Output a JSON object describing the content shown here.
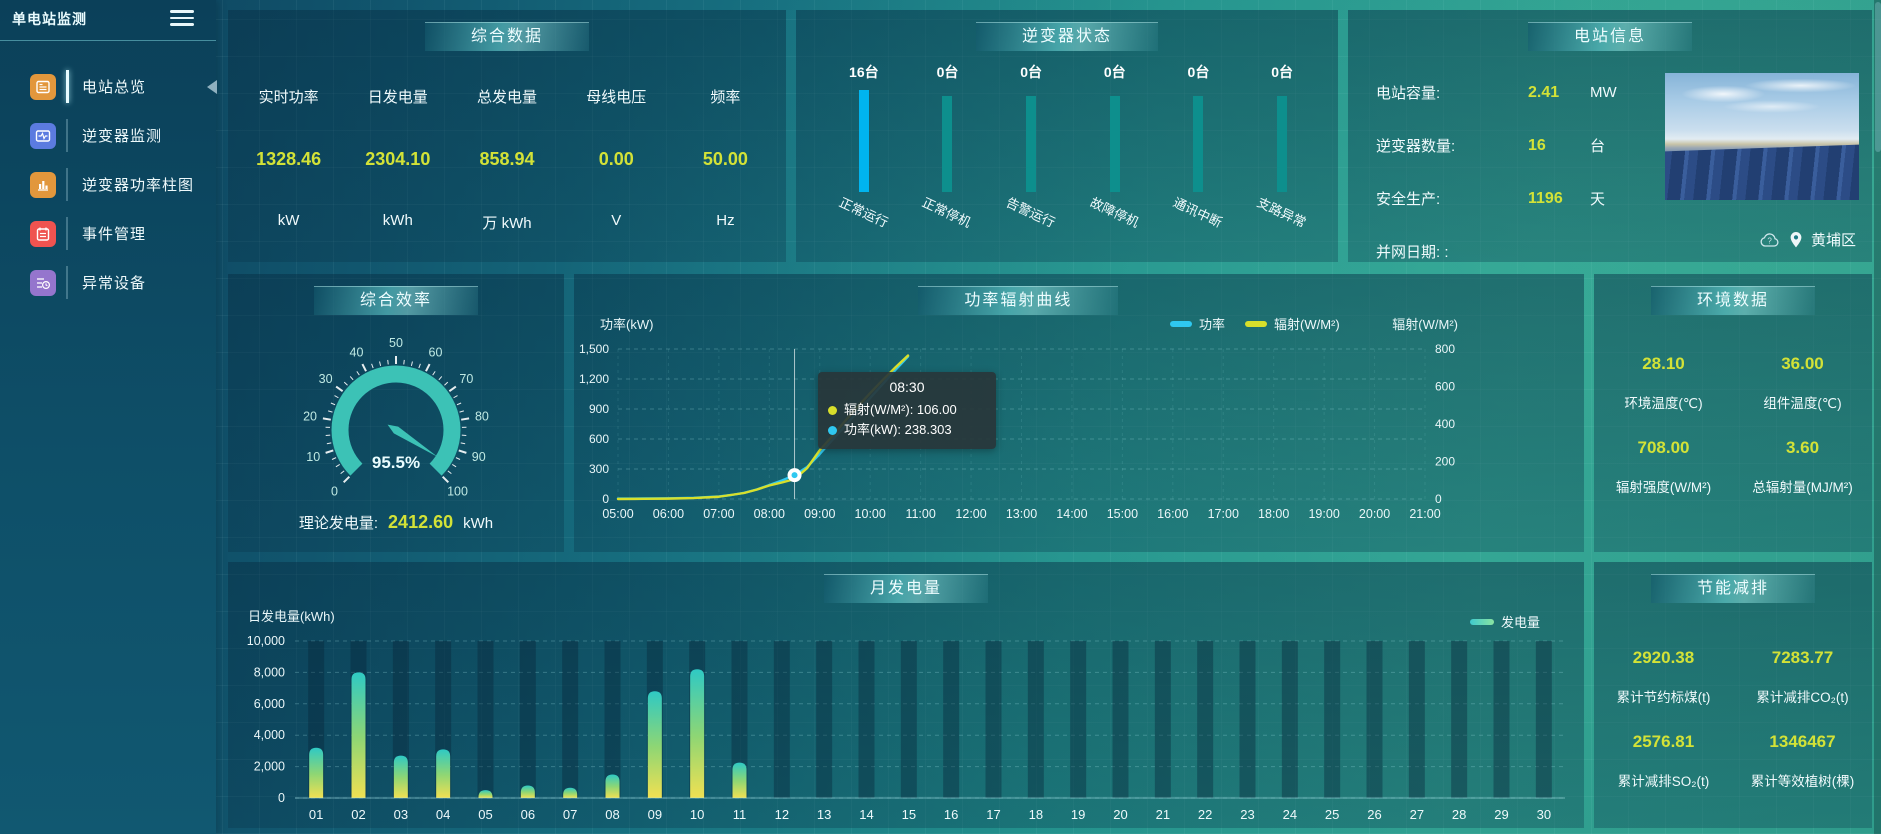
{
  "app": {
    "title": "单电站监测"
  },
  "sidebar": {
    "items": [
      {
        "label": "电站总览",
        "icon": "overview-icon",
        "color": "#e2973c",
        "active": true
      },
      {
        "label": "逆变器监测",
        "icon": "inverter-monitor-icon",
        "color": "#5b7be0",
        "active": false
      },
      {
        "label": "逆变器功率柱图",
        "icon": "inverter-power-icon",
        "color": "#e2973c",
        "active": false
      },
      {
        "label": "事件管理",
        "icon": "event-icon",
        "color": "#ef5350",
        "active": false
      },
      {
        "label": "异常设备",
        "icon": "abnormal-icon",
        "color": "#9575cd",
        "active": false
      }
    ]
  },
  "panels": {
    "summary": {
      "title": "综合数据",
      "metrics": [
        {
          "label": "实时功率",
          "value": "1328.46",
          "unit": "kW"
        },
        {
          "label": "日发电量",
          "value": "2304.10",
          "unit": "kWh"
        },
        {
          "label": "总发电量",
          "value": "858.94",
          "unit": "万 kWh"
        },
        {
          "label": "母线电压",
          "value": "0.00",
          "unit": "V"
        },
        {
          "label": "频率",
          "value": "50.00",
          "unit": "Hz"
        }
      ]
    },
    "inverter_status": {
      "title": "逆变器状态",
      "bars": [
        {
          "count": "16台",
          "value": 16,
          "label": "正常运行",
          "color": "#00b4ef"
        },
        {
          "count": "0台",
          "value": 0,
          "label": "正常停机",
          "color": "#0d8f8d"
        },
        {
          "count": "0台",
          "value": 0,
          "label": "告警运行",
          "color": "#0d8f8d"
        },
        {
          "count": "0台",
          "value": 0,
          "label": "故障停机",
          "color": "#0d8f8d"
        },
        {
          "count": "0台",
          "value": 0,
          "label": "通讯中断",
          "color": "#0d8f8d"
        },
        {
          "count": "0台",
          "value": 0,
          "label": "支路异常",
          "color": "#0d8f8d"
        }
      ]
    },
    "station_info": {
      "title": "电站信息",
      "rows": [
        {
          "label": "电站容量:",
          "value": "2.41",
          "unit": "MW"
        },
        {
          "label": "逆变器数量:",
          "value": "16",
          "unit": "台"
        },
        {
          "label": "安全生产:",
          "value": "1196",
          "unit": "天"
        },
        {
          "label": "并网日期: :",
          "value": "",
          "unit": ""
        }
      ],
      "location": "黄埔区"
    },
    "efficiency": {
      "title": "综合效率",
      "theory_label": "理论发电量:",
      "theory_value": "2412.60",
      "theory_unit": "kWh"
    },
    "power_curve": {
      "title": "功率辐射曲线",
      "axis_left": "功率(kW)",
      "axis_right": "辐射(W/M²)"
    },
    "environment": {
      "title": "环境数据",
      "metrics": [
        {
          "value": "28.10",
          "label": "环境温度(℃)"
        },
        {
          "value": "36.00",
          "label": "组件温度(℃)"
        },
        {
          "value": "708.00",
          "label": "辐射强度(W/M²)"
        },
        {
          "value": "3.60",
          "label": "总辐射量(MJ/M²)"
        }
      ]
    },
    "monthly": {
      "title": "月发电量",
      "axis_name": "日发电量(kWh)",
      "legend": "发电量"
    },
    "savings": {
      "title": "节能减排",
      "metrics": [
        {
          "value": "2920.38",
          "label": "累计节约标煤(t)"
        },
        {
          "value": "7283.77",
          "label": "累计减排CO₂(t)"
        },
        {
          "value": "2576.81",
          "label": "累计减排SO₂(t)"
        },
        {
          "value": "1346467",
          "label": "累计等效植树(棵)"
        }
      ]
    }
  },
  "chart_data": [
    {
      "type": "line",
      "title": "功率辐射曲线",
      "ylabel_left": "功率(kW)",
      "ylabel_right": "辐射(W/M²)",
      "legend": [
        "功率",
        "辐射(W/M²)"
      ],
      "colors": [
        "#2fc8f0",
        "#d8df2b"
      ],
      "x_labels": [
        "05:00",
        "06:00",
        "07:00",
        "08:00",
        "09:00",
        "10:00",
        "11:00",
        "12:00",
        "13:00",
        "14:00",
        "15:00",
        "16:00",
        "17:00",
        "18:00",
        "19:00",
        "20:00",
        "21:00"
      ],
      "x_range": [
        5,
        21
      ],
      "ylim_left": [
        0,
        1500
      ],
      "ylim_right": [
        0,
        800
      ],
      "yticks_left": [
        "0",
        "300",
        "600",
        "900",
        "1,200",
        "1,500"
      ],
      "yticks_right": [
        "0",
        "200",
        "400",
        "600",
        "800"
      ],
      "grid": true,
      "legend_position": "top-right",
      "series": [
        {
          "name": "功率",
          "axis": "left",
          "points": [
            [
              5,
              4
            ],
            [
              5.5,
              5
            ],
            [
              6,
              7
            ],
            [
              6.5,
              12
            ],
            [
              7,
              25
            ],
            [
              7.25,
              40
            ],
            [
              7.5,
              62
            ],
            [
              7.75,
              95
            ],
            [
              8,
              140
            ],
            [
              8.25,
              185
            ],
            [
              8.5,
              238.303
            ],
            [
              8.75,
              320
            ],
            [
              9,
              450
            ],
            [
              9.25,
              590
            ],
            [
              9.5,
              730
            ],
            [
              9.75,
              870
            ],
            [
              10,
              1010
            ],
            [
              10.25,
              1150
            ],
            [
              10.5,
              1290
            ],
            [
              10.75,
              1425
            ]
          ]
        },
        {
          "name": "辐射(W/M²)",
          "axis": "right",
          "points": [
            [
              5,
              0
            ],
            [
              5.5,
              1
            ],
            [
              6,
              2
            ],
            [
              6.5,
              5
            ],
            [
              7,
              12
            ],
            [
              7.5,
              32
            ],
            [
              7.75,
              50
            ],
            [
              8,
              72
            ],
            [
              8.25,
              88
            ],
            [
              8.5,
              106
            ],
            [
              8.75,
              165
            ],
            [
              9,
              260
            ],
            [
              9.25,
              335
            ],
            [
              9.5,
              415
            ],
            [
              9.75,
              492
            ],
            [
              10,
              565
            ],
            [
              10.25,
              635
            ],
            [
              10.5,
              702
            ],
            [
              10.75,
              765
            ]
          ]
        }
      ],
      "tooltip": {
        "x": 8.5,
        "title": "08:30",
        "rows": [
          {
            "color": "#d8df2b",
            "text": "辐射(W/M²): 106.00"
          },
          {
            "color": "#2fc8f0",
            "text": "功率(kW): 238.303"
          }
        ],
        "marker_value": 238.303
      }
    },
    {
      "type": "bar",
      "title": "月发电量",
      "ylabel": "日发电量(kWh)",
      "legend": "发电量",
      "categories": [
        "01",
        "02",
        "03",
        "04",
        "05",
        "06",
        "07",
        "08",
        "09",
        "10",
        "11",
        "12",
        "13",
        "14",
        "15",
        "16",
        "17",
        "18",
        "19",
        "20",
        "21",
        "22",
        "23",
        "24",
        "25",
        "26",
        "27",
        "28",
        "29",
        "30"
      ],
      "values": [
        3200,
        8000,
        2700,
        3100,
        500,
        800,
        650,
        1500,
        6800,
        8200,
        2250,
        0,
        0,
        0,
        0,
        0,
        0,
        0,
        0,
        0,
        0,
        0,
        0,
        0,
        0,
        0,
        0,
        0,
        0,
        0
      ],
      "ylim": [
        0,
        10000
      ],
      "yticks": [
        "0",
        "2,000",
        "4,000",
        "6,000",
        "8,000",
        "10,000"
      ],
      "grid": true
    },
    {
      "type": "gauge",
      "title": "综合效率",
      "value": 95.5,
      "display": "95.5%",
      "min": 0,
      "max": 100
    }
  ],
  "colors": {
    "value_yellow": "#d3e237",
    "gauge_teal": "#3cc2b6",
    "bar_active": "#00b4ef",
    "bar_idle": "#0d8f8d"
  }
}
